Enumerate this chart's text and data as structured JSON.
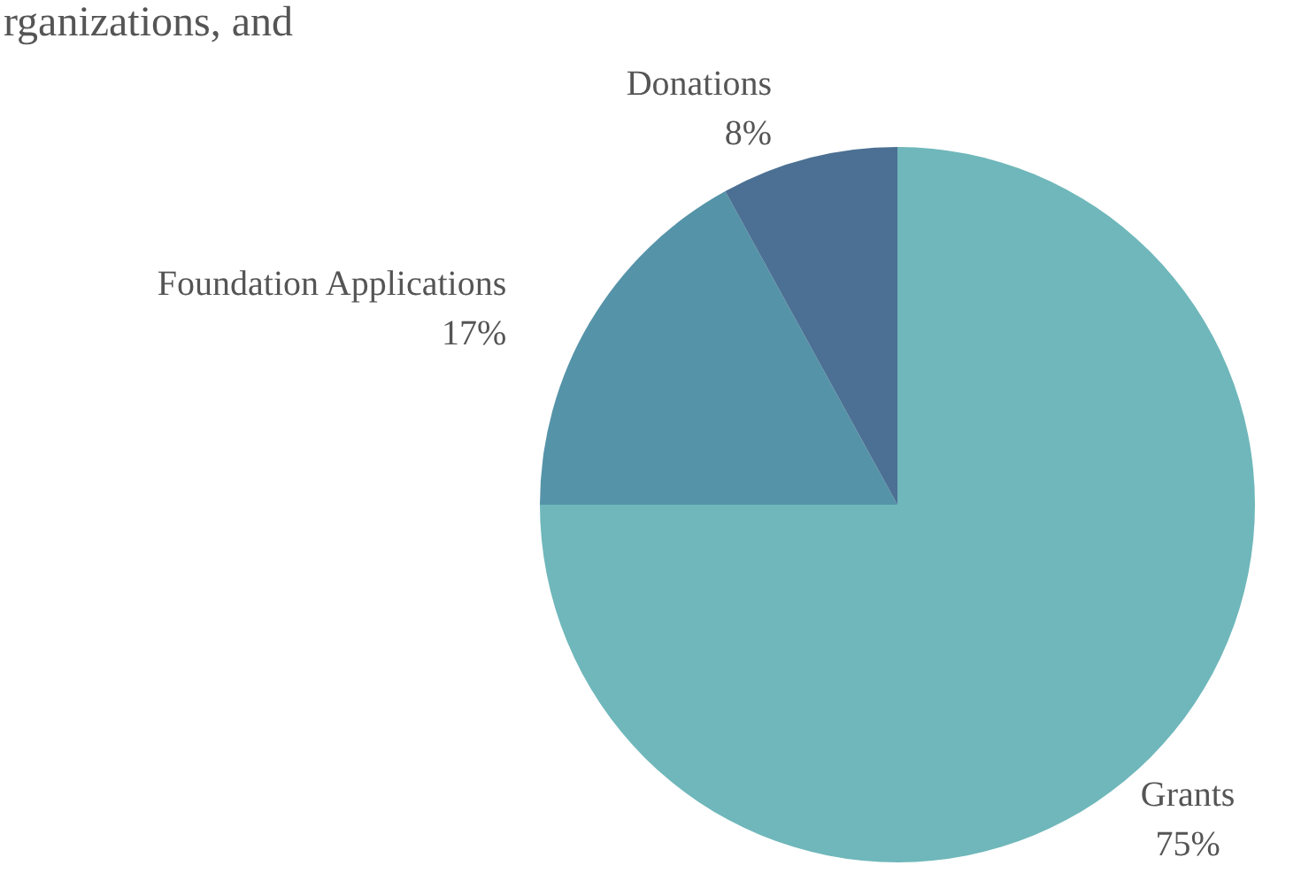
{
  "chart_data": {
    "type": "pie",
    "categories": [
      "Grants",
      "Foundation Applications",
      "Donations"
    ],
    "values": [
      75,
      17,
      8
    ],
    "value_labels": [
      "75%",
      "17%",
      "8%"
    ],
    "colors": [
      "#6fb7ba",
      "#5593a8",
      "#4b7093"
    ],
    "annotations": [
      "rganizations, and"
    ]
  }
}
